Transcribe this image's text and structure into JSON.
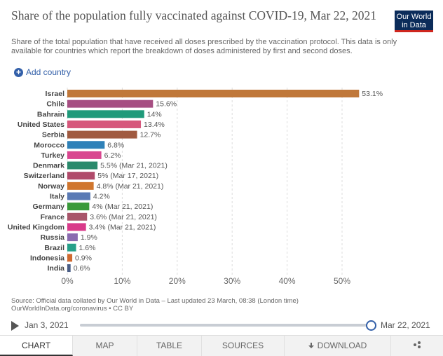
{
  "header": {
    "title": "Share of the population fully vaccinated against COVID-19, Mar 22, 2021",
    "subtitle": "Share of the total population that have received all doses prescribed by the vaccination protocol. This data is only available for countries which report the breakdown of doses administered by first and second doses.",
    "logo_line1": "Our World",
    "logo_line2": "in Data"
  },
  "controls": {
    "add_country": "Add country",
    "add_icon": "plus-circle-icon"
  },
  "chart_data": {
    "type": "bar",
    "orientation": "horizontal",
    "title": "Share of the population fully vaccinated against COVID-19, Mar 22, 2021",
    "xlabel": "",
    "ylabel": "",
    "xlim": [
      0,
      53.1
    ],
    "ticks": [
      0,
      10,
      20,
      30,
      40,
      50
    ],
    "tick_labels": [
      "0%",
      "10%",
      "20%",
      "30%",
      "40%",
      "50%"
    ],
    "grid": "vertical dashed",
    "categories": [
      "Israel",
      "Chile",
      "Bahrain",
      "United States",
      "Serbia",
      "Morocco",
      "Turkey",
      "Denmark",
      "Switzerland",
      "Norway",
      "Italy",
      "Germany",
      "France",
      "United Kingdom",
      "Russia",
      "Brazil",
      "Indonesia",
      "India"
    ],
    "values": [
      53.1,
      15.6,
      14,
      13.4,
      12.7,
      6.8,
      6.2,
      5.5,
      5,
      4.8,
      4.2,
      4,
      3.6,
      3.4,
      1.9,
      1.6,
      0.9,
      0.6
    ],
    "labels": [
      "53.1%",
      "15.6%",
      "14%",
      "13.4%",
      "12.7%",
      "6.8%",
      "6.2%",
      "5.5% (Mar 21, 2021)",
      "5% (Mar 17, 2021)",
      "4.8% (Mar 21, 2021)",
      "4.2%",
      "4% (Mar 21, 2021)",
      "3.6% (Mar 21, 2021)",
      "3.4% (Mar 21, 2021)",
      "1.9%",
      "1.6%",
      "0.9%",
      "0.6%"
    ],
    "colors": [
      "#c0783a",
      "#a64e82",
      "#1f9a7a",
      "#d6587c",
      "#a05a40",
      "#2f81b8",
      "#d9468f",
      "#2a8a6c",
      "#b04a6a",
      "#d0762e",
      "#5a7ab5",
      "#3a9a3a",
      "#a8556a",
      "#d93a8a",
      "#8a6ab0",
      "#27a08a",
      "#d06a30",
      "#4a5e86"
    ]
  },
  "footer": {
    "source_line1": "Source: Official data collated by Our World in Data – Last updated 23 March, 08:38 (London time)",
    "source_line2": "OurWorldInData.org/coronavirus • CC BY"
  },
  "timeline": {
    "start": "Jan 3, 2021",
    "end": "Mar 22, 2021",
    "position": 1.0
  },
  "tabs": [
    "CHART",
    "MAP",
    "TABLE",
    "SOURCES",
    "DOWNLOAD"
  ],
  "share_icon": "share-icon"
}
